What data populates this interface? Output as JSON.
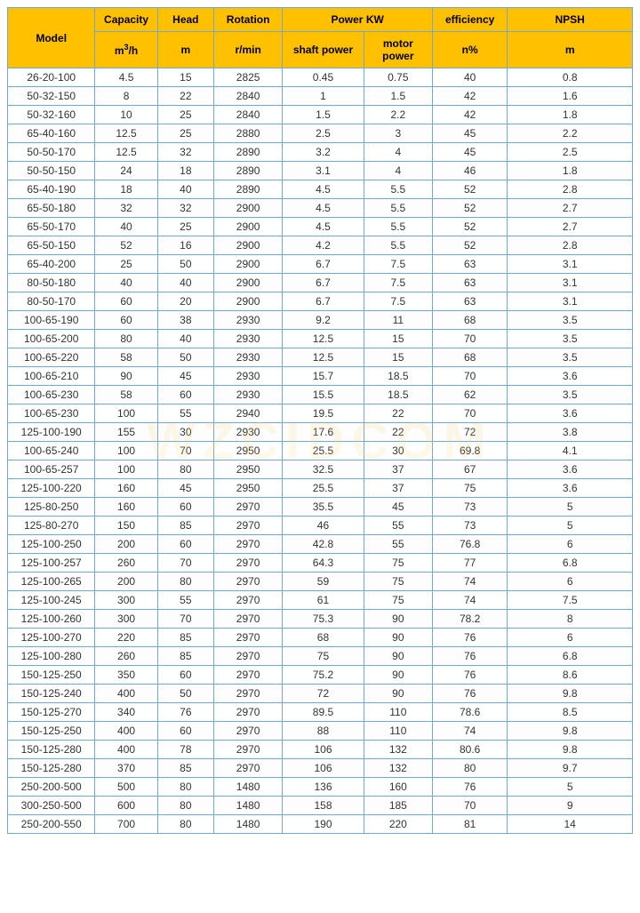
{
  "type": "table",
  "colors": {
    "header_bg": "#ffc000",
    "border": "#6fa8d8",
    "text": "#333333",
    "row_bg": "#ffffff"
  },
  "header": {
    "model": "Model",
    "capacity": "Capacity",
    "capacity_unit": "m³/h",
    "head": "Head",
    "head_unit": "m",
    "rotation": "Rotation",
    "rotation_unit": "r/min",
    "power": "Power KW",
    "shaft_power": "shaft power",
    "motor_power": "motor power",
    "efficiency": "efficiency",
    "efficiency_unit": "n%",
    "npsh": "NPSH",
    "npsh_unit": "m"
  },
  "col_widths": [
    "14%",
    "10%",
    "9%",
    "11%",
    "13%",
    "11%",
    "12%",
    "20%"
  ],
  "rows": [
    [
      "26-20-100",
      "4.5",
      "15",
      "2825",
      "0.45",
      "0.75",
      "40",
      "0.8"
    ],
    [
      "50-32-150",
      "8",
      "22",
      "2840",
      "1",
      "1.5",
      "42",
      "1.6"
    ],
    [
      "50-32-160",
      "10",
      "25",
      "2840",
      "1.5",
      "2.2",
      "42",
      "1.8"
    ],
    [
      "65-40-160",
      "12.5",
      "25",
      "2880",
      "2.5",
      "3",
      "45",
      "2.2"
    ],
    [
      "50-50-170",
      "12.5",
      "32",
      "2890",
      "3.2",
      "4",
      "45",
      "2.5"
    ],
    [
      "50-50-150",
      "24",
      "18",
      "2890",
      "3.1",
      "4",
      "46",
      "1.8"
    ],
    [
      "65-40-190",
      "18",
      "40",
      "2890",
      "4.5",
      "5.5",
      "52",
      "2.8"
    ],
    [
      "65-50-180",
      "32",
      "32",
      "2900",
      "4.5",
      "5.5",
      "52",
      "2.7"
    ],
    [
      "65-50-170",
      "40",
      "25",
      "2900",
      "4.5",
      "5.5",
      "52",
      "2.7"
    ],
    [
      "65-50-150",
      "52",
      "16",
      "2900",
      "4.2",
      "5.5",
      "52",
      "2.8"
    ],
    [
      "65-40-200",
      "25",
      "50",
      "2900",
      "6.7",
      "7.5",
      "63",
      "3.1"
    ],
    [
      "80-50-180",
      "40",
      "40",
      "2900",
      "6.7",
      "7.5",
      "63",
      "3.1"
    ],
    [
      "80-50-170",
      "60",
      "20",
      "2900",
      "6.7",
      "7.5",
      "63",
      "3.1"
    ],
    [
      "100-65-190",
      "60",
      "38",
      "2930",
      "9.2",
      "11",
      "68",
      "3.5"
    ],
    [
      "100-65-200",
      "80",
      "40",
      "2930",
      "12.5",
      "15",
      "70",
      "3.5"
    ],
    [
      "100-65-220",
      "58",
      "50",
      "2930",
      "12.5",
      "15",
      "68",
      "3.5"
    ],
    [
      "100-65-210",
      "90",
      "45",
      "2930",
      "15.7",
      "18.5",
      "70",
      "3.6"
    ],
    [
      "100-65-230",
      "58",
      "60",
      "2930",
      "15.5",
      "18.5",
      "62",
      "3.5"
    ],
    [
      "100-65-230",
      "100",
      "55",
      "2940",
      "19.5",
      "22",
      "70",
      "3.6"
    ],
    [
      "125-100-190",
      "155",
      "30",
      "2930",
      "17.6",
      "22",
      "72",
      "3.8"
    ],
    [
      "100-65-240",
      "100",
      "70",
      "2950",
      "25.5",
      "30",
      "69.8",
      "4.1"
    ],
    [
      "100-65-257",
      "100",
      "80",
      "2950",
      "32.5",
      "37",
      "67",
      "3.6"
    ],
    [
      "125-100-220",
      "160",
      "45",
      "2950",
      "25.5",
      "37",
      "75",
      "3.6"
    ],
    [
      "125-80-250",
      "160",
      "60",
      "2970",
      "35.5",
      "45",
      "73",
      "5"
    ],
    [
      "125-80-270",
      "150",
      "85",
      "2970",
      "46",
      "55",
      "73",
      "5"
    ],
    [
      "125-100-250",
      "200",
      "60",
      "2970",
      "42.8",
      "55",
      "76.8",
      "6"
    ],
    [
      "125-100-257",
      "260",
      "70",
      "2970",
      "64.3",
      "75",
      "77",
      "6.8"
    ],
    [
      "125-100-265",
      "200",
      "80",
      "2970",
      "59",
      "75",
      "74",
      "6"
    ],
    [
      "125-100-245",
      "300",
      "55",
      "2970",
      "61",
      "75",
      "74",
      "7.5"
    ],
    [
      "125-100-260",
      "300",
      "70",
      "2970",
      "75.3",
      "90",
      "78.2",
      "8"
    ],
    [
      "125-100-270",
      "220",
      "85",
      "2970",
      "68",
      "90",
      "76",
      "6"
    ],
    [
      "125-100-280",
      "260",
      "85",
      "2970",
      "75",
      "90",
      "76",
      "6.8"
    ],
    [
      "150-125-250",
      "350",
      "60",
      "2970",
      "75.2",
      "90",
      "76",
      "8.6"
    ],
    [
      "150-125-240",
      "400",
      "50",
      "2970",
      "72",
      "90",
      "76",
      "9.8"
    ],
    [
      "150-125-270",
      "340",
      "76",
      "2970",
      "89.5",
      "110",
      "78.6",
      "8.5"
    ],
    [
      "150-125-250",
      "400",
      "60",
      "2970",
      "88",
      "110",
      "74",
      "9.8"
    ],
    [
      "150-125-280",
      "400",
      "78",
      "2970",
      "106",
      "132",
      "80.6",
      "9.8"
    ],
    [
      "150-125-280",
      "370",
      "85",
      "2970",
      "106",
      "132",
      "80",
      "9.7"
    ],
    [
      "250-200-500",
      "500",
      "80",
      "1480",
      "136",
      "160",
      "76",
      "5"
    ],
    [
      "300-250-500",
      "600",
      "80",
      "1480",
      "158",
      "185",
      "70",
      "9"
    ],
    [
      "250-200-550",
      "700",
      "80",
      "1480",
      "190",
      "220",
      "81",
      "14"
    ]
  ],
  "watermark": "WZCIDCOM"
}
